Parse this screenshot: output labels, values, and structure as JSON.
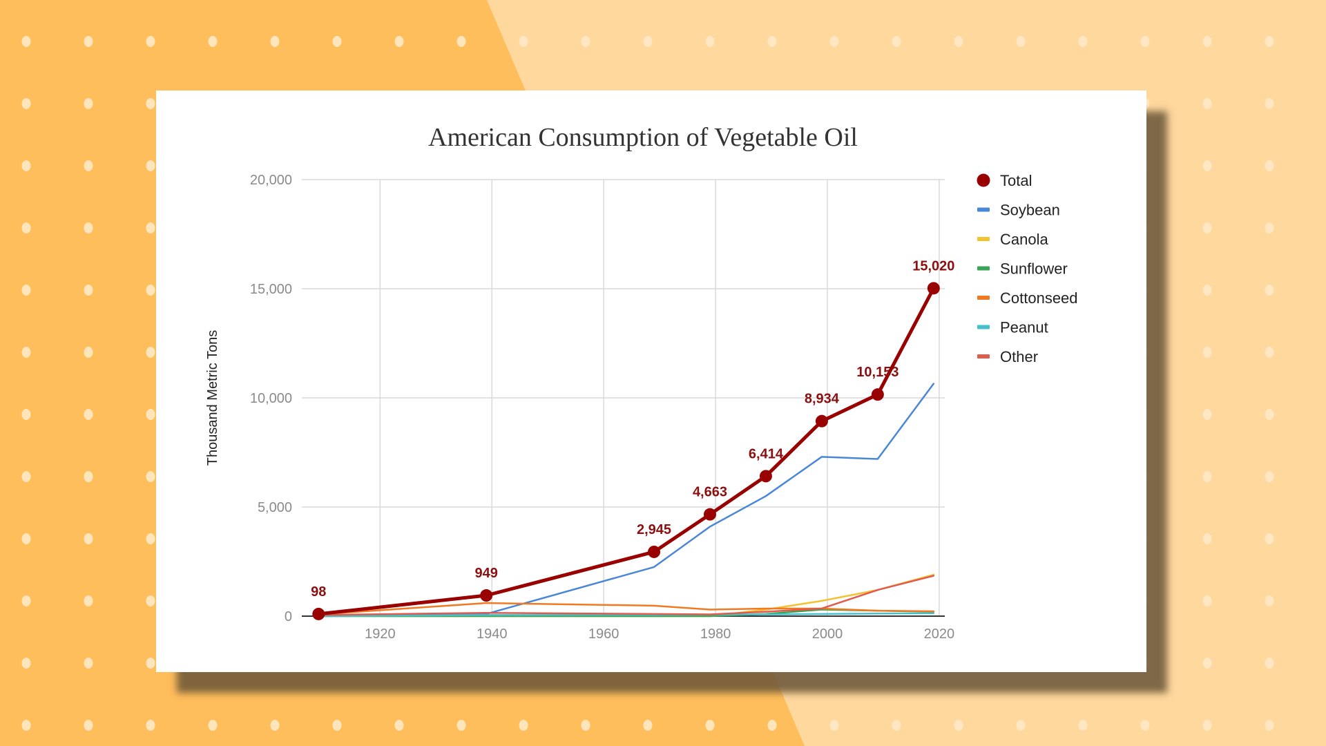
{
  "colors": {
    "bg_left": "#FFBE5C",
    "bg_right": "#FFD89E",
    "dot": "#FFE9C7"
  },
  "chart_data": {
    "type": "line",
    "title": "American Consumption of Vegetable Oil",
    "xlabel": "",
    "ylabel": "Thousand Metric Tons",
    "xlim": [
      1906,
      2021
    ],
    "ylim": [
      0,
      20000
    ],
    "x_ticks": [
      1920,
      1940,
      1960,
      1980,
      2000,
      2020
    ],
    "x_tick_labels": [
      "1920",
      "1940",
      "1960",
      "1980",
      "2000",
      "2020"
    ],
    "y_ticks": [
      0,
      5000,
      10000,
      15000,
      20000
    ],
    "y_tick_labels": [
      "0",
      "5,000",
      "10,000",
      "15,000",
      "20,000"
    ],
    "grid": true,
    "legend": "right",
    "x": [
      1909,
      1939,
      1969,
      1979,
      1989,
      1999,
      2009,
      2019
    ],
    "series": [
      {
        "name": "Total",
        "color": "#990000",
        "markers": true,
        "width": 5,
        "values": [
          98,
          949,
          2945,
          4663,
          6414,
          8934,
          10153,
          15020
        ],
        "labels": [
          "98",
          "949",
          "2,945",
          "4,663",
          "6,414",
          "8,934",
          "10,153",
          "15,020"
        ]
      },
      {
        "name": "Soybean",
        "color": "#4a86d8",
        "width": 2.5,
        "values": [
          0,
          100,
          2250,
          4100,
          5500,
          7300,
          7200,
          10650
        ]
      },
      {
        "name": "Canola",
        "color": "#f1c232",
        "width": 2.5,
        "values": [
          0,
          0,
          0,
          0,
          300,
          700,
          1200,
          1900
        ]
      },
      {
        "name": "Sunflower",
        "color": "#3aa655",
        "width": 2.5,
        "values": [
          0,
          0,
          0,
          0,
          100,
          300,
          250,
          200
        ]
      },
      {
        "name": "Cottonseed",
        "color": "#f07a22",
        "width": 2.5,
        "values": [
          80,
          600,
          480,
          300,
          350,
          350,
          250,
          220
        ]
      },
      {
        "name": "Peanut",
        "color": "#46c1cc",
        "width": 2.5,
        "values": [
          0,
          50,
          60,
          70,
          80,
          100,
          120,
          130
        ]
      },
      {
        "name": "Other",
        "color": "#e05a4e",
        "width": 2.5,
        "values": [
          50,
          150,
          100,
          80,
          200,
          350,
          1200,
          1850
        ]
      }
    ]
  }
}
